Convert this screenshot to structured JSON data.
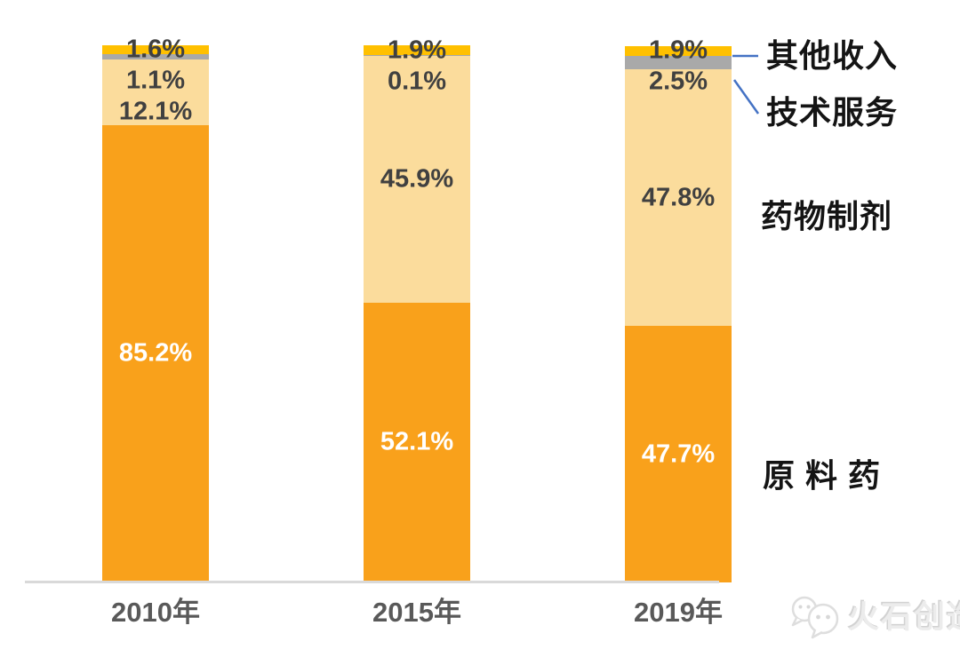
{
  "chart_data": {
    "type": "bar",
    "stacked": true,
    "unit": "%",
    "title": "",
    "xlabel": "",
    "ylabel": "",
    "ylim": [
      0,
      100
    ],
    "grid": false,
    "legend_position": "right-annotations",
    "categories": [
      "2010年",
      "2015年",
      "2019年"
    ],
    "series": [
      {
        "key": "raw-material-api",
        "name": "原料药",
        "color": "#F9A11B",
        "label_color": "#FFFFFF",
        "values": [
          85.2,
          52.1,
          47.7
        ]
      },
      {
        "key": "drug-preparation",
        "name": "药物制剂",
        "color": "#FBDC9C",
        "label_color": "#404040",
        "values": [
          12.1,
          45.9,
          47.8
        ]
      },
      {
        "key": "tech-service",
        "name": "技术服务",
        "color": "#A9A9A9",
        "label_color": "#404040",
        "values": [
          1.1,
          0.1,
          2.5
        ]
      },
      {
        "key": "other-income",
        "name": "其他收入",
        "color": "#FFC000",
        "label_color": "#404040",
        "values": [
          1.6,
          1.9,
          1.9
        ]
      }
    ],
    "data_labels": [
      "85.2%",
      "12.1%",
      "1.1%",
      "1.6%",
      "52.1%",
      "45.9%",
      "0.1%",
      "1.9%",
      "47.7%",
      "47.8%",
      "2.5%",
      "1.9%"
    ]
  },
  "annotations": {
    "other_income": "其他收入",
    "tech_service": "技术服务",
    "drug_preparation": "药物制剂",
    "api": "原 料 药"
  },
  "axis": {
    "baseline_color": "#D9D9D9",
    "label_color": "#595959"
  },
  "leader_line_color": "#4472C4",
  "watermark": {
    "text": "火石创造"
  }
}
